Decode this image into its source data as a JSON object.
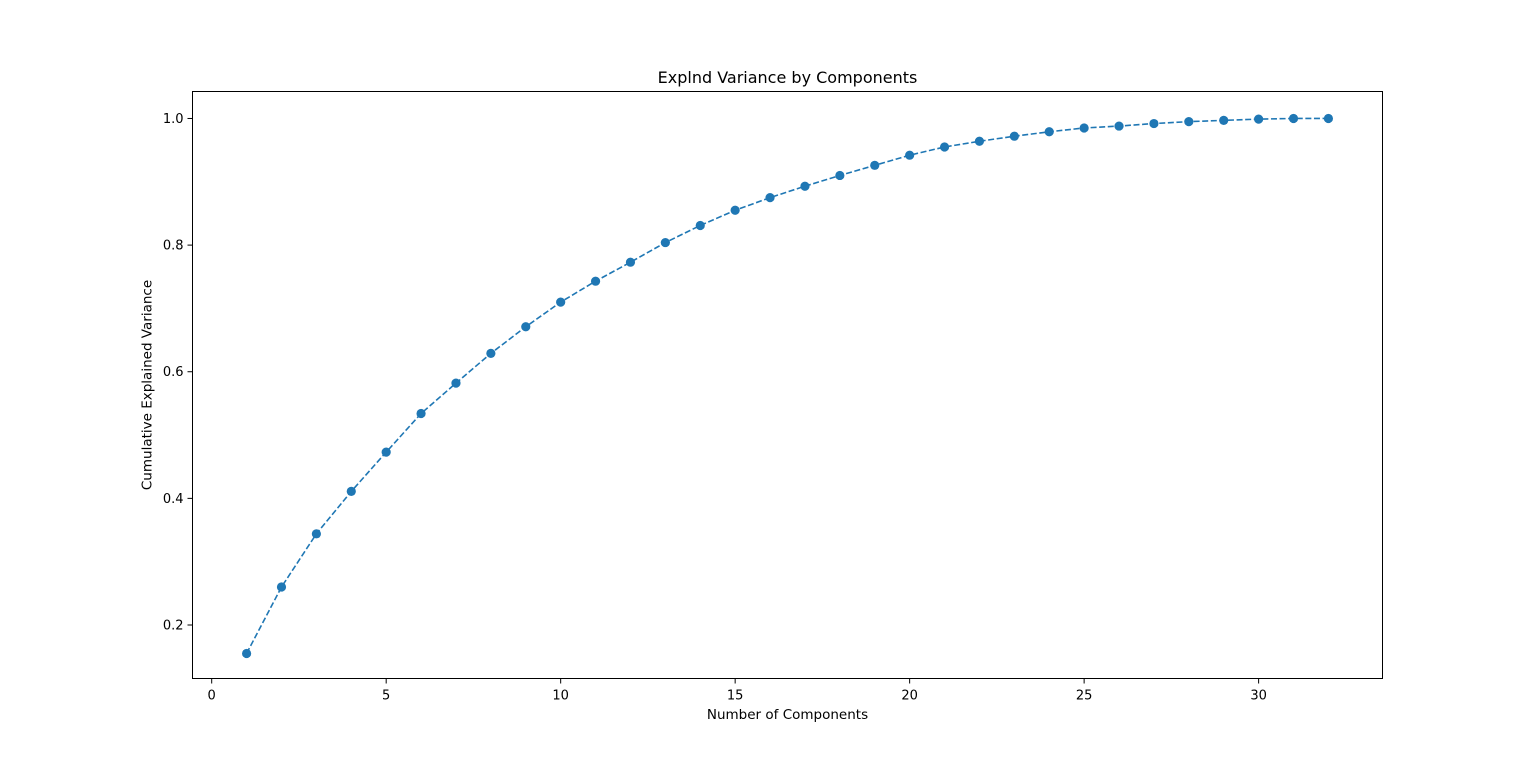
{
  "chart_data": {
    "type": "line",
    "title": "Explnd Variance by Components",
    "xlabel": "Number of Components",
    "ylabel": "Cumulative Explained Variance",
    "xlim": [
      -0.55,
      33.55
    ],
    "ylim": [
      0.1155,
      1.0426
    ],
    "xticks": [
      0,
      5,
      10,
      15,
      20,
      25,
      30
    ],
    "xtick_labels": [
      "0",
      "5",
      "10",
      "15",
      "20",
      "25",
      "30"
    ],
    "yticks": [
      0.2,
      0.4,
      0.6,
      0.8,
      1.0
    ],
    "ytick_labels": [
      "0.2",
      "0.4",
      "0.6",
      "0.8",
      "1.0"
    ],
    "grid": false,
    "legend": "none",
    "line_style": "dashed",
    "marker": "circle",
    "color": "#1f77b4",
    "series": [
      {
        "x": [
          1,
          2,
          3,
          4,
          5,
          6,
          7,
          8,
          9,
          10,
          11,
          12,
          13,
          14,
          15,
          16,
          17,
          18,
          19,
          20,
          21,
          22,
          23,
          24,
          25,
          26,
          27,
          28,
          29,
          30,
          31,
          32
        ],
        "values": [
          0.155,
          0.26,
          0.344,
          0.411,
          0.473,
          0.534,
          0.582,
          0.629,
          0.671,
          0.71,
          0.743,
          0.773,
          0.804,
          0.831,
          0.855,
          0.875,
          0.893,
          0.91,
          0.926,
          0.942,
          0.955,
          0.964,
          0.972,
          0.979,
          0.985,
          0.988,
          0.992,
          0.995,
          0.997,
          0.999,
          1.0,
          1.0
        ]
      }
    ]
  }
}
